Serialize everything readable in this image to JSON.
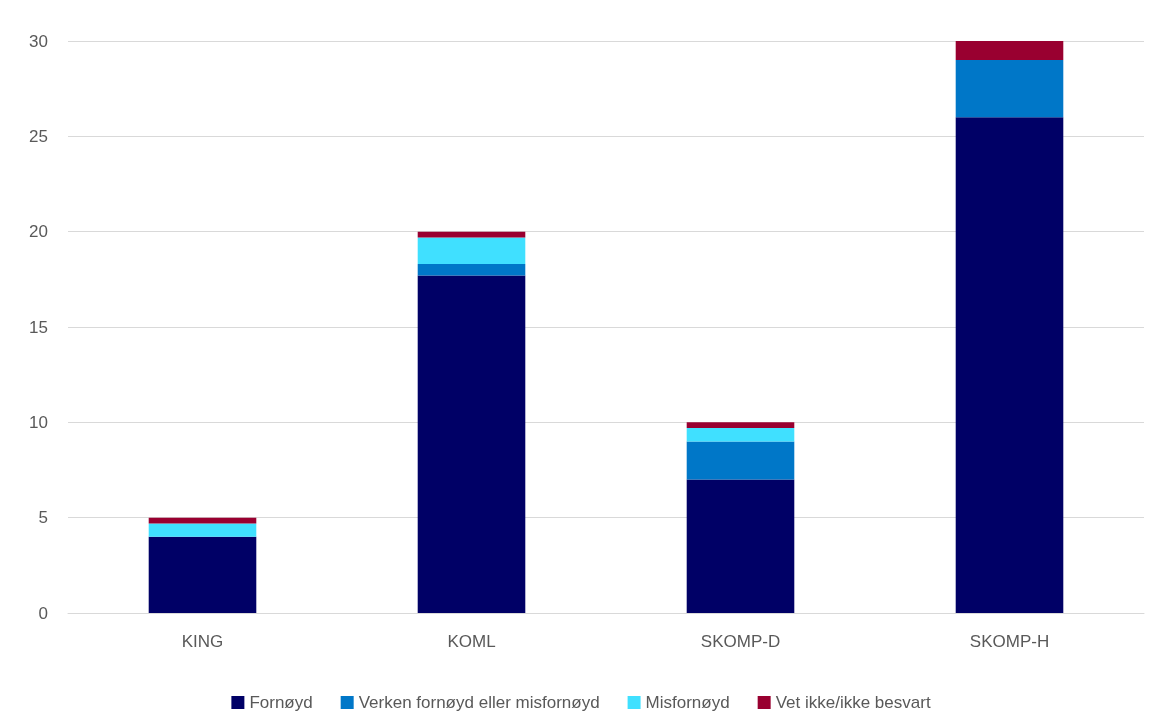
{
  "chart_data": {
    "type": "bar",
    "stacked": true,
    "categories": [
      "KING",
      "KOML",
      "SKOMP-D",
      "SKOMP-H"
    ],
    "series": [
      {
        "name": "Fornøyd",
        "color": "#000066",
        "values": [
          4,
          17.7,
          7,
          26
        ]
      },
      {
        "name": "Verken fornøyd eller misfornøyd",
        "color": "#0077c8",
        "values": [
          0,
          0.6,
          2,
          3
        ]
      },
      {
        "name": "Misfornøyd",
        "color": "#40e0ff",
        "values": [
          0.7,
          1.4,
          0.7,
          0
        ]
      },
      {
        "name": "Vet ikke/ikke besvart",
        "color": "#990030",
        "values": [
          0.3,
          0.3,
          0.3,
          1
        ]
      }
    ],
    "ylim": [
      0,
      30
    ],
    "yticks": [
      0,
      5,
      10,
      15,
      20,
      25,
      30
    ],
    "grid": "y",
    "legend": "bottom"
  }
}
